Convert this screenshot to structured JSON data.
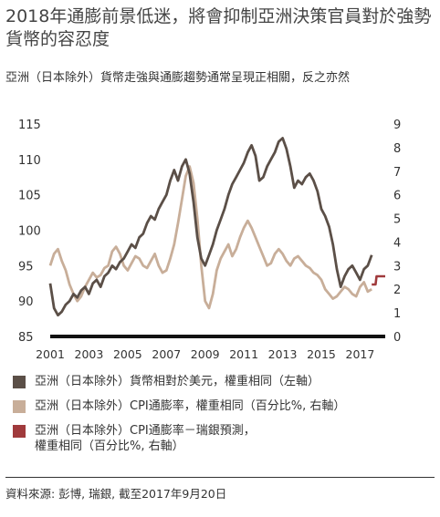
{
  "title": "2018年通膨前景低迷，將會抑制亞洲決策官員對於強勢貨幣的容忍度",
  "subtitle": "亞洲（日本除外）貨幣走強與通膨趨勢通常呈現正相關，反之亦然",
  "source": "資料來源: 彭博, 瑞銀, 截至2017年9月20日",
  "colors": {
    "currency": "#5b4f47",
    "cpi": "#c8ae99",
    "forecast": "#a03a3c",
    "axis": "#111111"
  },
  "legend": [
    {
      "label": "亞洲（日本除外）貨幣相對於美元，權重相同（左軸）",
      "color": "#5b4f47"
    },
    {
      "label": "亞洲（日本除外）CPI通膨率，權重相同（百分比%, 右軸）",
      "color": "#c8ae99"
    },
    {
      "label": "亞洲（日本除外）CPI通膨率－瑞銀預測，\n權重相同（百分比%, 右軸）",
      "color": "#a03a3c"
    }
  ],
  "chart_data": {
    "type": "line",
    "x_range": [
      2001,
      2018.3
    ],
    "x_ticks": [
      "2001",
      "2003",
      "2005",
      "2007",
      "2009",
      "2011",
      "2013",
      "2015",
      "2017"
    ],
    "y_left": {
      "range": [
        85,
        115
      ],
      "ticks": [
        "115",
        "110",
        "105",
        "100",
        "95",
        "90",
        "85"
      ]
    },
    "y_right": {
      "range": [
        0,
        9
      ],
      "ticks": [
        "9",
        "8",
        "7",
        "6",
        "5",
        "4",
        "3",
        "2",
        "1",
        "0"
      ]
    },
    "series": [
      {
        "name": "亞洲（日本除外）貨幣相對於美元，權重相同（左軸）",
        "axis": "left",
        "x": [
          2001.0,
          2001.2,
          2001.4,
          2001.6,
          2001.8,
          2002.0,
          2002.2,
          2002.4,
          2002.6,
          2002.8,
          2003.0,
          2003.2,
          2003.4,
          2003.6,
          2003.8,
          2004.0,
          2004.2,
          2004.4,
          2004.6,
          2004.8,
          2005.0,
          2005.2,
          2005.4,
          2005.6,
          2005.8,
          2006.0,
          2006.2,
          2006.4,
          2006.6,
          2006.8,
          2007.0,
          2007.2,
          2007.4,
          2007.6,
          2007.8,
          2008.0,
          2008.2,
          2008.4,
          2008.6,
          2008.8,
          2009.0,
          2009.2,
          2009.4,
          2009.6,
          2009.8,
          2010.0,
          2010.2,
          2010.4,
          2010.6,
          2010.8,
          2011.0,
          2011.2,
          2011.4,
          2011.6,
          2011.8,
          2012.0,
          2012.2,
          2012.4,
          2012.6,
          2012.8,
          2013.0,
          2013.2,
          2013.4,
          2013.6,
          2013.8,
          2014.0,
          2014.2,
          2014.4,
          2014.6,
          2014.8,
          2015.0,
          2015.2,
          2015.4,
          2015.6,
          2015.8,
          2016.0,
          2016.2,
          2016.4,
          2016.6,
          2016.8,
          2017.0,
          2017.2,
          2017.4,
          2017.6
        ],
        "y": [
          92.5,
          89.0,
          88.0,
          88.5,
          89.5,
          90.0,
          91.0,
          90.5,
          91.5,
          92.0,
          91.0,
          92.5,
          93.0,
          92.0,
          93.5,
          94.0,
          95.0,
          94.5,
          95.5,
          96.0,
          97.0,
          98.0,
          97.5,
          99.0,
          99.5,
          101.0,
          102.0,
          101.5,
          103.0,
          104.0,
          105.0,
          107.0,
          108.5,
          107.0,
          109.0,
          110.0,
          108.0,
          104.0,
          99.0,
          96.0,
          95.0,
          96.5,
          98.0,
          100.0,
          101.5,
          103.0,
          105.0,
          106.5,
          107.5,
          108.5,
          109.5,
          111.0,
          112.0,
          110.5,
          107.0,
          107.5,
          109.0,
          110.0,
          111.0,
          112.5,
          113.0,
          111.5,
          109.0,
          106.0,
          107.0,
          106.5,
          107.5,
          108.0,
          107.0,
          105.5,
          103.0,
          102.0,
          100.5,
          98.0,
          94.5,
          92.0,
          93.5,
          94.5,
          95.0,
          94.0,
          93.0,
          94.5,
          95.0,
          96.5
        ]
      },
      {
        "name": "亞洲（日本除外）CPI通膨率，權重相同（百分比%, 右軸）",
        "axis": "right",
        "x": [
          2001.0,
          2001.2,
          2001.4,
          2001.6,
          2001.8,
          2002.0,
          2002.2,
          2002.4,
          2002.6,
          2002.8,
          2003.0,
          2003.2,
          2003.4,
          2003.6,
          2003.8,
          2004.0,
          2004.2,
          2004.4,
          2004.6,
          2004.8,
          2005.0,
          2005.2,
          2005.4,
          2005.6,
          2005.8,
          2006.0,
          2006.2,
          2006.4,
          2006.6,
          2006.8,
          2007.0,
          2007.2,
          2007.4,
          2007.6,
          2007.8,
          2008.0,
          2008.2,
          2008.4,
          2008.6,
          2008.8,
          2009.0,
          2009.2,
          2009.4,
          2009.6,
          2009.8,
          2010.0,
          2010.2,
          2010.4,
          2010.6,
          2010.8,
          2011.0,
          2011.2,
          2011.4,
          2011.6,
          2011.8,
          2012.0,
          2012.2,
          2012.4,
          2012.6,
          2012.8,
          2013.0,
          2013.2,
          2013.4,
          2013.6,
          2013.8,
          2014.0,
          2014.2,
          2014.4,
          2014.6,
          2014.8,
          2015.0,
          2015.2,
          2015.4,
          2015.6,
          2015.8,
          2016.0,
          2016.2,
          2016.4,
          2016.6,
          2016.8,
          2017.0,
          2017.2,
          2017.4,
          2017.6
        ],
        "y": [
          3.0,
          3.5,
          3.7,
          3.2,
          2.8,
          2.2,
          1.8,
          1.5,
          1.7,
          2.1,
          2.4,
          2.7,
          2.5,
          2.6,
          2.9,
          3.0,
          3.6,
          3.8,
          3.5,
          3.0,
          2.8,
          3.1,
          3.4,
          3.3,
          3.0,
          2.9,
          3.2,
          3.5,
          3.0,
          2.7,
          2.8,
          3.3,
          3.9,
          4.8,
          5.8,
          6.8,
          7.2,
          6.5,
          5.0,
          3.0,
          1.5,
          1.2,
          1.8,
          2.8,
          3.3,
          3.6,
          3.9,
          3.4,
          3.7,
          4.2,
          4.6,
          4.9,
          4.6,
          4.2,
          3.8,
          3.4,
          3.0,
          3.1,
          3.5,
          3.7,
          3.5,
          3.2,
          3.0,
          3.3,
          3.4,
          3.2,
          3.0,
          2.9,
          2.7,
          2.6,
          2.4,
          2.0,
          1.8,
          1.6,
          1.7,
          1.9,
          2.1,
          2.0,
          1.8,
          1.7,
          2.1,
          2.3,
          1.9,
          2.0
        ]
      },
      {
        "name": "亞洲（日本除外）CPI通膨率－瑞銀預測，權重相同（百分比%, 右軸）",
        "axis": "right",
        "x": [
          2017.6,
          2017.8,
          2017.85,
          2018.0,
          2018.3
        ],
        "y": [
          2.2,
          2.2,
          2.55,
          2.55,
          2.55
        ]
      }
    ]
  }
}
